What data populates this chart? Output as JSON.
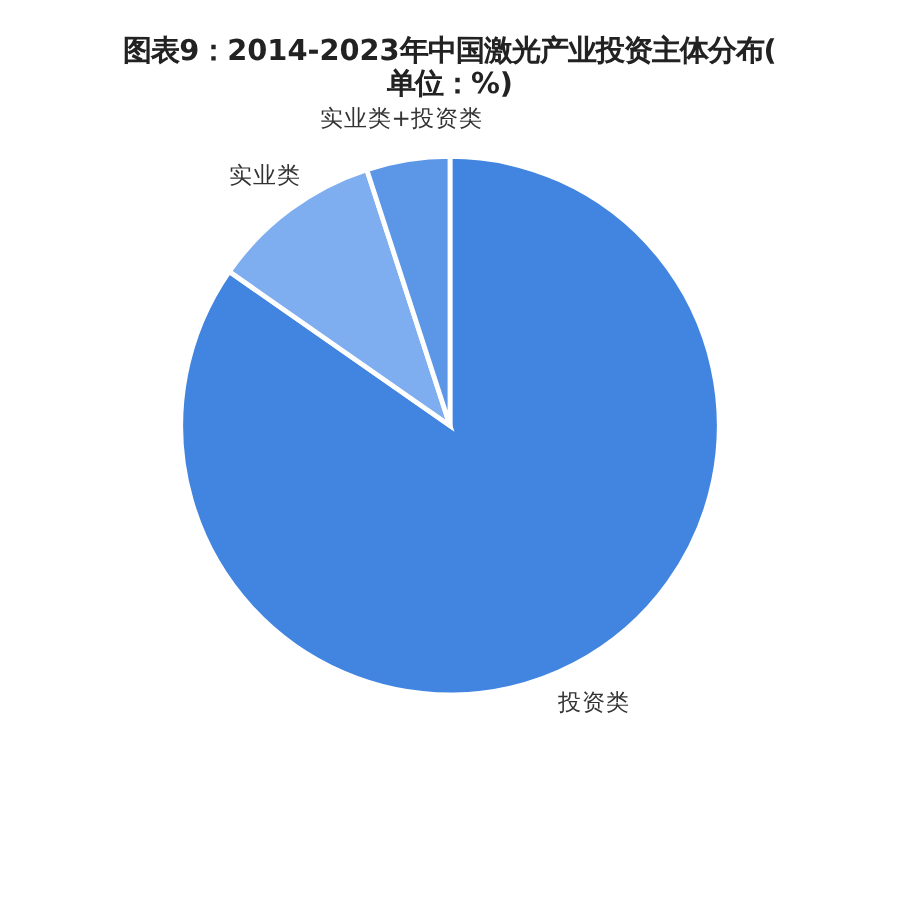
{
  "chart_data": {
    "type": "pie",
    "title": "图表9：2014-2023年中国激光产业投资主体分布(单位：%)",
    "categories": [
      "投资类",
      "实业类",
      "实业类+投资类"
    ],
    "values": [
      84.7,
      10.3,
      5.0
    ],
    "colors": [
      "#4285e0",
      "#7eaef0",
      "#5b97e6"
    ]
  }
}
